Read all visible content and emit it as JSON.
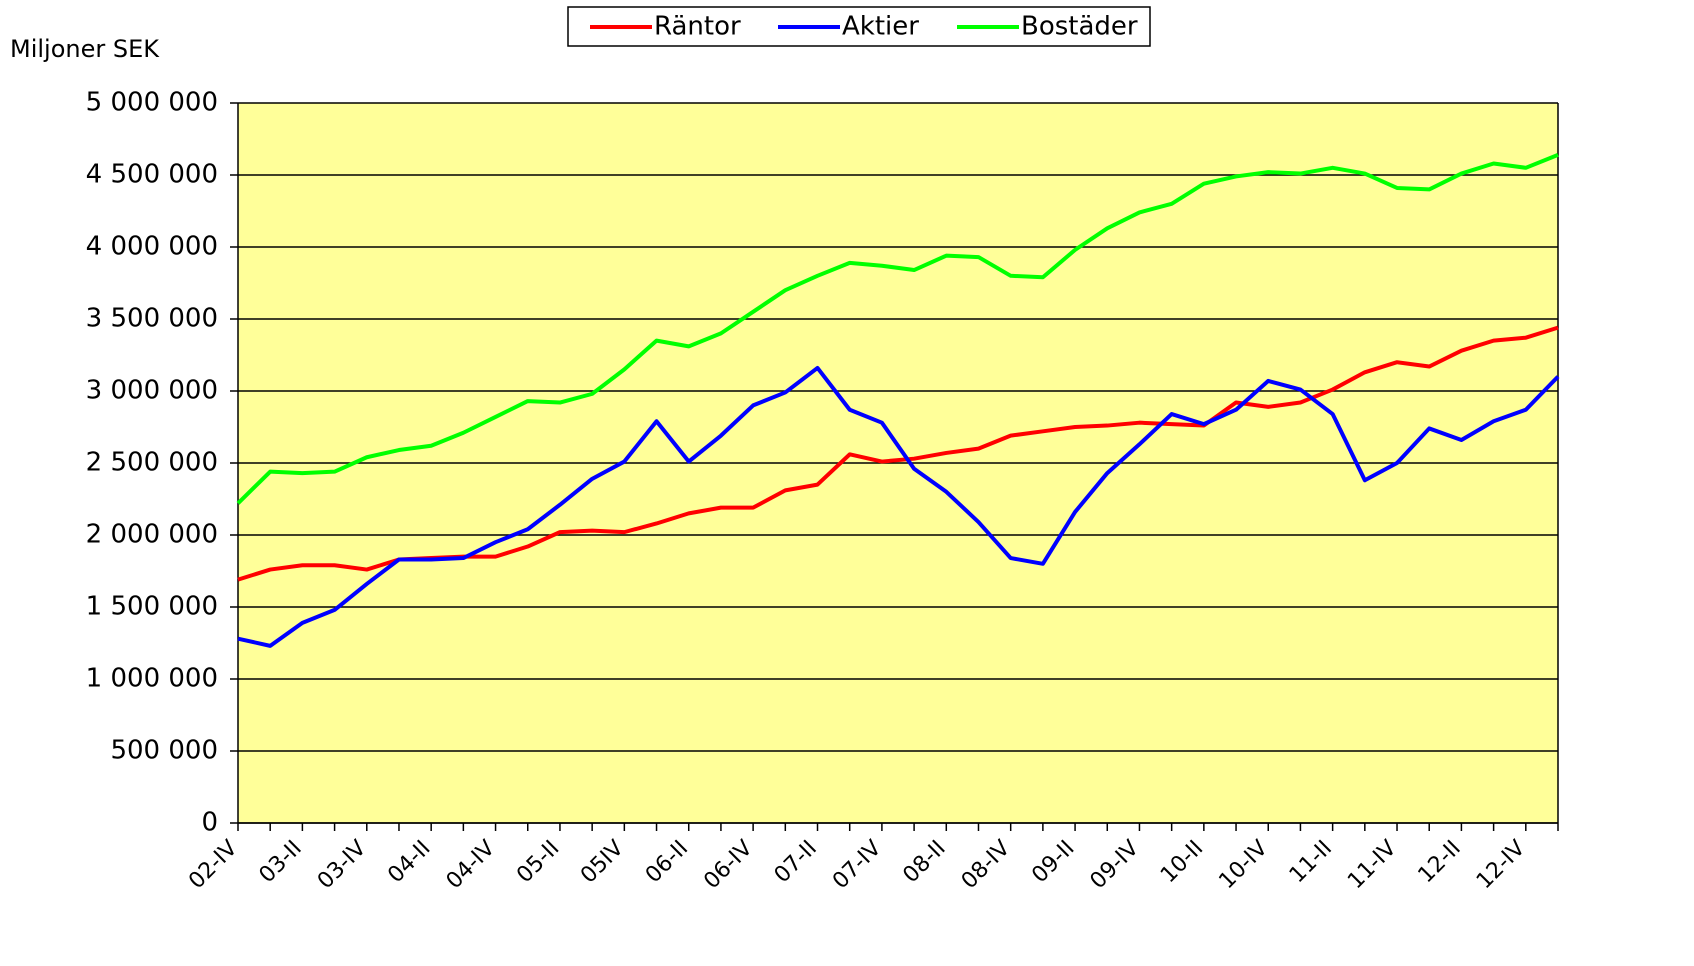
{
  "chart_data": {
    "type": "line",
    "y_label": "Miljoner SEK",
    "categories": [
      "02-IV",
      null,
      "03-II",
      null,
      "03-IV",
      null,
      "04-II",
      null,
      "04-IV",
      null,
      "05-II",
      null,
      "05IV",
      null,
      "06-II",
      null,
      "06-IV",
      null,
      "07-II",
      null,
      "07-IV",
      null,
      "08-II",
      null,
      "08-IV",
      null,
      "09-II",
      null,
      "09-IV",
      null,
      "10-II",
      null,
      "10-IV",
      null,
      "11-II",
      null,
      "11-IV",
      null,
      "12-II",
      null,
      "12-IV",
      null
    ],
    "series": [
      {
        "name": "Räntor",
        "color": "#ff0000",
        "values": [
          1690000,
          1760000,
          1790000,
          1790000,
          1760000,
          1830000,
          1840000,
          1850000,
          1850000,
          1920000,
          2020000,
          2030000,
          2020000,
          2080000,
          2150000,
          2190000,
          2190000,
          2310000,
          2350000,
          2560000,
          2510000,
          2530000,
          2570000,
          2600000,
          2690000,
          2720000,
          2750000,
          2760000,
          2780000,
          2770000,
          2760000,
          2920000,
          2890000,
          2920000,
          3010000,
          3130000,
          3200000,
          3170000,
          3280000,
          3350000,
          3370000,
          3440000
        ]
      },
      {
        "name": "Aktier",
        "color": "#0000ff",
        "values": [
          1280000,
          1230000,
          1390000,
          1480000,
          1660000,
          1830000,
          1830000,
          1840000,
          1950000,
          2040000,
          2210000,
          2390000,
          2510000,
          2790000,
          2510000,
          2690000,
          2900000,
          2990000,
          3160000,
          2870000,
          2780000,
          2460000,
          2300000,
          2090000,
          1840000,
          1800000,
          2160000,
          2430000,
          2630000,
          2840000,
          2770000,
          2870000,
          3070000,
          3010000,
          2840000,
          2380000,
          2500000,
          2740000,
          2660000,
          2790000,
          2870000,
          3100000
        ]
      },
      {
        "name": "Bostäder",
        "color": "#00ff00",
        "values": [
          2220000,
          2440000,
          2430000,
          2440000,
          2540000,
          2590000,
          2620000,
          2710000,
          2820000,
          2930000,
          2920000,
          2980000,
          3150000,
          3350000,
          3310000,
          3400000,
          3550000,
          3700000,
          3800000,
          3890000,
          3870000,
          3840000,
          3940000,
          3930000,
          3800000,
          3790000,
          3980000,
          4130000,
          4240000,
          4300000,
          4440000,
          4490000,
          4520000,
          4510000,
          4550000,
          4510000,
          4410000,
          4400000,
          4510000,
          4580000,
          4550000,
          4640000
        ]
      }
    ],
    "ylim": [
      0,
      5000000
    ],
    "yticks": [
      0,
      {
        "value": 500000,
        "label": "500 000"
      },
      {
        "value": 1000000,
        "label": "1 000 000"
      },
      {
        "value": 1500000,
        "label": "1 500 000"
      },
      {
        "value": 2000000,
        "label": "2 000 000"
      },
      {
        "value": 2500000,
        "label": "2 500 000"
      },
      {
        "value": 3000000,
        "label": "3 000 000"
      },
      {
        "value": 3500000,
        "label": "3 500 000"
      },
      {
        "value": 4000000,
        "label": "4 000 000"
      },
      {
        "value": 4500000,
        "label": "4 500 000"
      },
      {
        "value": 5000000,
        "label": "5 000 000"
      }
    ],
    "grid": true,
    "background": "#ffff99",
    "legend": "top"
  }
}
